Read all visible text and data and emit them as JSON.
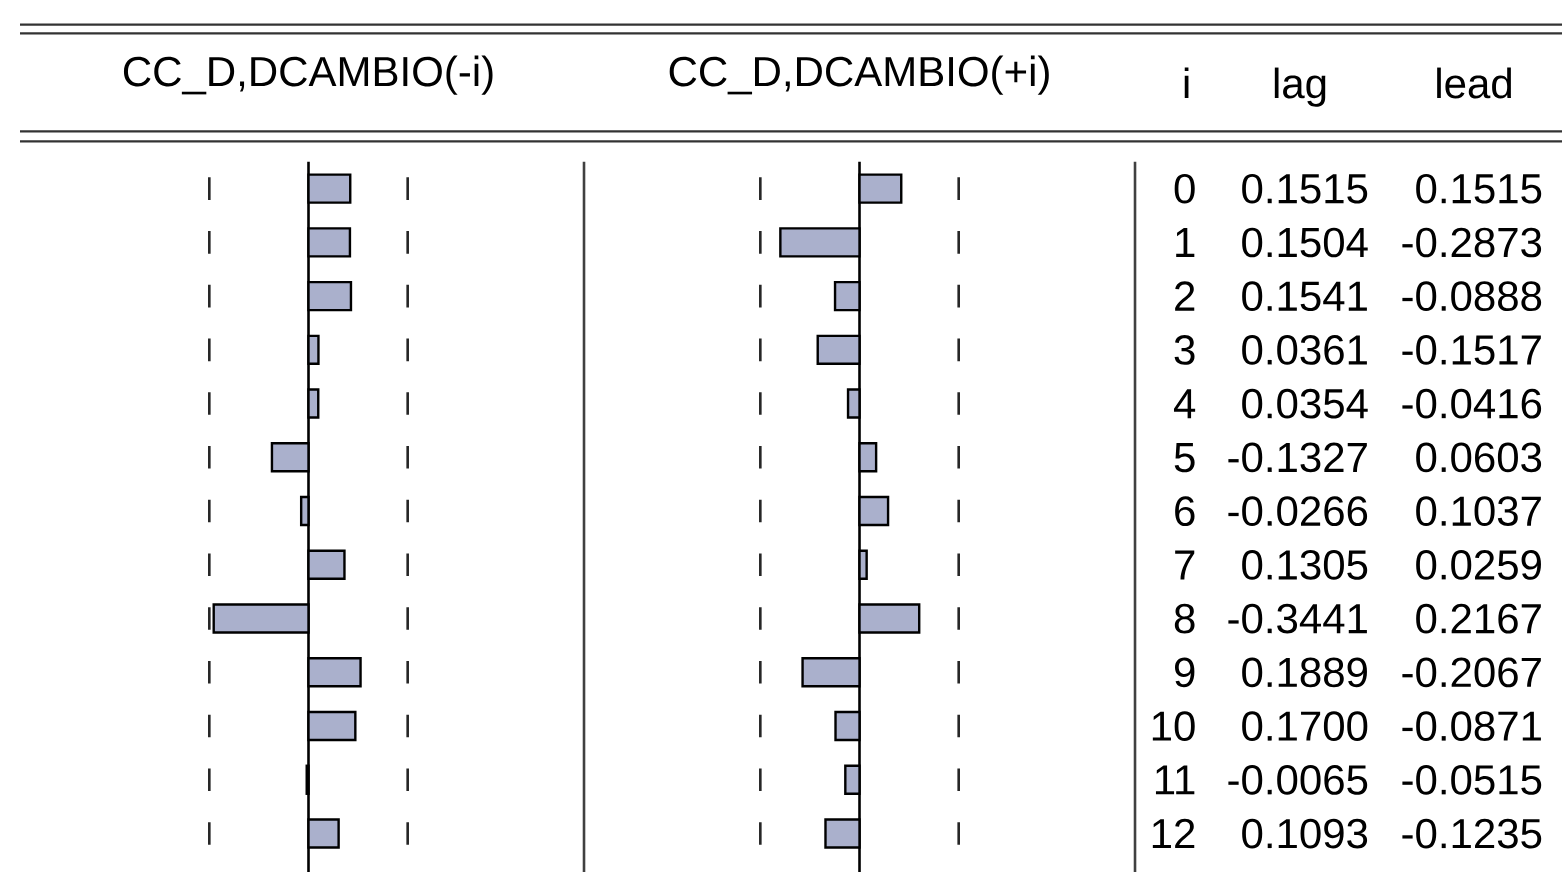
{
  "chart_data": [
    {
      "type": "bar",
      "orientation": "horizontal",
      "title": "CC_D,DCAMBIO(-i)",
      "categories": [
        "0",
        "1",
        "2",
        "3",
        "4",
        "5",
        "6",
        "7",
        "8",
        "9",
        "10",
        "11",
        "12"
      ],
      "series": [
        {
          "name": "lag",
          "color": "#aab0cc",
          "values": [
            0.1515,
            0.1504,
            0.1541,
            0.0361,
            0.0354,
            -0.1327,
            -0.0266,
            0.1305,
            -0.3441,
            0.1889,
            0.17,
            -0.0065,
            0.1093
          ],
          "value_labels": [
            "0.1515",
            "0.1504",
            "0.1541",
            "0.0361",
            "0.0354",
            "-0.1327",
            "-0.0266",
            "0.1305",
            "-0.3441",
            "0.1889",
            "0.1700",
            "-0.0065",
            "0.1093"
          ]
        }
      ],
      "tick_labels": false,
      "ref_lines": [
        {
          "axis": "x",
          "value": -0.36,
          "line_style": "dashed"
        },
        {
          "axis": "x",
          "value": 0.36,
          "line_style": "dashed"
        }
      ]
    },
    {
      "type": "bar",
      "orientation": "horizontal",
      "title": "CC_D,DCAMBIO(+i)",
      "ylabel": "i",
      "categories": [
        "0",
        "1",
        "2",
        "3",
        "4",
        "5",
        "6",
        "7",
        "8",
        "9",
        "10",
        "11",
        "12"
      ],
      "series": [
        {
          "name": "lead",
          "color": "#aab0cc",
          "values": [
            0.1515,
            -0.2873,
            -0.0888,
            -0.1517,
            -0.0416,
            0.0603,
            0.1037,
            0.0259,
            0.2167,
            -0.2067,
            -0.0871,
            -0.0515,
            -0.1235
          ],
          "value_labels": [
            "0.1515",
            "-0.2873",
            "-0.0888",
            "-0.1517",
            "-0.0416",
            "0.0603",
            "0.1037",
            "0.0259",
            "0.2167",
            "-0.2067",
            "-0.0871",
            "-0.0515",
            "-0.1235"
          ]
        }
      ],
      "xlim": [
        -1,
        1
      ],
      "tick_labels": "y",
      "ref_lines": [
        {
          "axis": "x",
          "value": -0.36,
          "line_style": "dashed"
        },
        {
          "axis": "x",
          "value": 0.36,
          "line_style": "dashed"
        }
      ]
    }
  ]
}
